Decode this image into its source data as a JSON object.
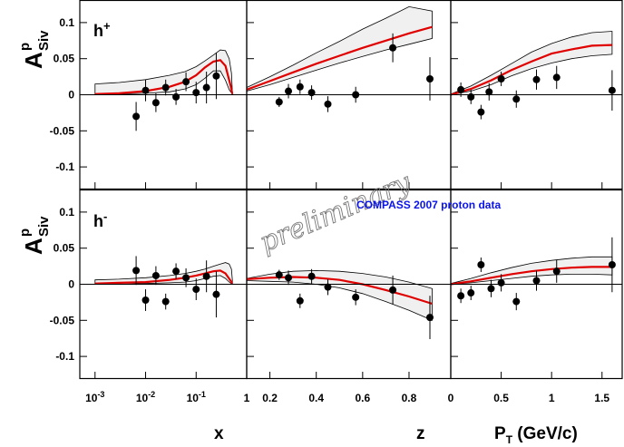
{
  "figure": {
    "y_label_main": "A",
    "y_label_sub": "Siv",
    "y_label_sup": "p",
    "x_axis_labels": [
      "x",
      "z",
      "P_T (GeV/c)"
    ],
    "watermark": "preliminary",
    "annotation": "COMPASS 2007 proton data",
    "annotation_color": "#0a14e6",
    "model_color": "#e00000",
    "band_fill": "#f0f0f0",
    "row_labels": [
      "h+",
      "h-"
    ]
  },
  "chart_data": {
    "type": "scatter",
    "ylim": [
      -0.125,
      0.125
    ],
    "y_ticks": [
      -0.1,
      -0.05,
      0,
      0.05,
      0.1
    ],
    "y_tick_labels": [
      "-0.1",
      "-0.05",
      "0",
      "0.05",
      "0.1"
    ],
    "columns": [
      {
        "variable": "x",
        "scale": "log",
        "xlim": [
          0.0005,
          1
        ],
        "ticks": [
          0.001,
          0.01,
          0.1,
          1
        ],
        "tick_labels": [
          "10-3",
          "10-2",
          "10-1",
          "1"
        ]
      },
      {
        "variable": "z",
        "scale": "linear",
        "xlim": [
          0.1,
          0.98
        ],
        "ticks": [
          0.2,
          0.4,
          0.6,
          0.8
        ],
        "tick_labels": [
          "0.2",
          "0.4",
          "0.6",
          "0.8"
        ]
      },
      {
        "variable": "P_T (GeV/c)",
        "scale": "linear",
        "xlim": [
          0,
          1.7
        ],
        "ticks": [
          0,
          0.5,
          1,
          1.5
        ],
        "tick_labels": [
          "0",
          "0.5",
          "1",
          "1.5"
        ]
      }
    ],
    "panels": [
      {
        "row": 0,
        "col": 0,
        "hadron": "h+",
        "points": [
          [
            0.0065,
            -0.03,
            0.02
          ],
          [
            0.01,
            0.006,
            0.015
          ],
          [
            0.016,
            -0.011,
            0.013
          ],
          [
            0.025,
            0.01,
            0.011
          ],
          [
            0.04,
            -0.003,
            0.011
          ],
          [
            0.063,
            0.018,
            0.013
          ],
          [
            0.1,
            0.003,
            0.015
          ],
          [
            0.16,
            0.01,
            0.022
          ],
          [
            0.25,
            0.026,
            0.032
          ]
        ],
        "model": [
          [
            0.001,
            0.001
          ],
          [
            0.003,
            0.002
          ],
          [
            0.01,
            0.005
          ],
          [
            0.03,
            0.011
          ],
          [
            0.06,
            0.018
          ],
          [
            0.1,
            0.027
          ],
          [
            0.15,
            0.038
          ],
          [
            0.22,
            0.046
          ],
          [
            0.3,
            0.048
          ],
          [
            0.38,
            0.04
          ],
          [
            0.48,
            0.013
          ],
          [
            0.52,
            0.001
          ]
        ],
        "band_upper": [
          [
            0.001,
            0.015
          ],
          [
            0.003,
            0.017
          ],
          [
            0.01,
            0.021
          ],
          [
            0.03,
            0.027
          ],
          [
            0.06,
            0.032
          ],
          [
            0.1,
            0.039
          ],
          [
            0.15,
            0.047
          ],
          [
            0.22,
            0.055
          ],
          [
            0.3,
            0.062
          ],
          [
            0.38,
            0.061
          ],
          [
            0.45,
            0.05
          ],
          [
            0.5,
            0.03
          ],
          [
            0.52,
            0.004
          ]
        ],
        "band_lower": [
          [
            0.001,
            0.001
          ],
          [
            0.003,
            0.001
          ],
          [
            0.01,
            0.002
          ],
          [
            0.03,
            0.004
          ],
          [
            0.06,
            0.008
          ],
          [
            0.1,
            0.014
          ],
          [
            0.15,
            0.023
          ],
          [
            0.22,
            0.033
          ],
          [
            0.3,
            0.033
          ],
          [
            0.38,
            0.02
          ],
          [
            0.45,
            0.007
          ],
          [
            0.52,
            0.001
          ]
        ]
      },
      {
        "row": 0,
        "col": 1,
        "hadron": "h+",
        "points": [
          [
            0.24,
            -0.01,
            0.007
          ],
          [
            0.28,
            0.005,
            0.01
          ],
          [
            0.33,
            0.011,
            0.01
          ],
          [
            0.38,
            0.003,
            0.01
          ],
          [
            0.45,
            -0.013,
            0.011
          ],
          [
            0.57,
            0.0,
            0.011
          ],
          [
            0.73,
            0.065,
            0.02
          ],
          [
            0.89,
            0.022,
            0.03
          ]
        ],
        "model": [
          [
            0.1,
            0.007
          ],
          [
            0.2,
            0.019
          ],
          [
            0.3,
            0.031
          ],
          [
            0.4,
            0.043
          ],
          [
            0.5,
            0.054
          ],
          [
            0.6,
            0.065
          ],
          [
            0.7,
            0.075
          ],
          [
            0.8,
            0.085
          ],
          [
            0.9,
            0.094
          ]
        ],
        "band_upper": [
          [
            0.1,
            0.01
          ],
          [
            0.2,
            0.025
          ],
          [
            0.3,
            0.041
          ],
          [
            0.4,
            0.058
          ],
          [
            0.5,
            0.074
          ],
          [
            0.6,
            0.091
          ],
          [
            0.7,
            0.106
          ],
          [
            0.8,
            0.122
          ],
          [
            0.9,
            0.116
          ]
        ],
        "band_lower": [
          [
            0.1,
            0.005
          ],
          [
            0.2,
            0.014
          ],
          [
            0.3,
            0.024
          ],
          [
            0.4,
            0.034
          ],
          [
            0.5,
            0.044
          ],
          [
            0.6,
            0.053
          ],
          [
            0.7,
            0.062
          ],
          [
            0.8,
            0.07
          ],
          [
            0.9,
            0.078
          ]
        ]
      },
      {
        "row": 0,
        "col": 2,
        "hadron": "h+",
        "points": [
          [
            0.1,
            0.007,
            0.01
          ],
          [
            0.2,
            -0.003,
            0.01
          ],
          [
            0.3,
            -0.024,
            0.01
          ],
          [
            0.38,
            0.004,
            0.012
          ],
          [
            0.5,
            0.022,
            0.01
          ],
          [
            0.65,
            -0.006,
            0.012
          ],
          [
            0.85,
            0.021,
            0.014
          ],
          [
            1.05,
            0.024,
            0.016
          ],
          [
            1.6,
            0.006,
            0.028
          ]
        ],
        "model": [
          [
            0,
            0.0
          ],
          [
            0.2,
            0.008
          ],
          [
            0.4,
            0.02
          ],
          [
            0.6,
            0.034
          ],
          [
            0.8,
            0.046
          ],
          [
            1.0,
            0.057
          ],
          [
            1.2,
            0.063
          ],
          [
            1.4,
            0.068
          ],
          [
            1.6,
            0.069
          ]
        ],
        "band_upper": [
          [
            0,
            0.001
          ],
          [
            0.2,
            0.012
          ],
          [
            0.4,
            0.027
          ],
          [
            0.6,
            0.043
          ],
          [
            0.8,
            0.059
          ],
          [
            1.0,
            0.071
          ],
          [
            1.2,
            0.08
          ],
          [
            1.4,
            0.086
          ],
          [
            1.6,
            0.088
          ]
        ],
        "band_lower": [
          [
            0,
            0.0
          ],
          [
            0.2,
            0.005
          ],
          [
            0.4,
            0.014
          ],
          [
            0.6,
            0.026
          ],
          [
            0.8,
            0.036
          ],
          [
            1.0,
            0.044
          ],
          [
            1.2,
            0.05
          ],
          [
            1.4,
            0.054
          ],
          [
            1.6,
            0.056
          ]
        ]
      },
      {
        "row": 1,
        "col": 0,
        "hadron": "h-",
        "points": [
          [
            0.0065,
            0.019,
            0.02
          ],
          [
            0.01,
            -0.022,
            0.015
          ],
          [
            0.016,
            0.012,
            0.013
          ],
          [
            0.025,
            -0.024,
            0.011
          ],
          [
            0.04,
            0.018,
            0.011
          ],
          [
            0.063,
            0.009,
            0.013
          ],
          [
            0.1,
            -0.007,
            0.015
          ],
          [
            0.16,
            0.011,
            0.022
          ],
          [
            0.25,
            -0.014,
            0.032
          ]
        ],
        "model": [
          [
            0.001,
            0.001
          ],
          [
            0.003,
            0.002
          ],
          [
            0.01,
            0.003
          ],
          [
            0.03,
            0.006
          ],
          [
            0.06,
            0.009
          ],
          [
            0.1,
            0.012
          ],
          [
            0.15,
            0.015
          ],
          [
            0.22,
            0.018
          ],
          [
            0.3,
            0.019
          ],
          [
            0.38,
            0.015
          ],
          [
            0.48,
            0.005
          ],
          [
            0.52,
            0.001
          ]
        ],
        "band_upper": [
          [
            0.001,
            0.006
          ],
          [
            0.003,
            0.007
          ],
          [
            0.01,
            0.009
          ],
          [
            0.03,
            0.012
          ],
          [
            0.06,
            0.015
          ],
          [
            0.1,
            0.018
          ],
          [
            0.15,
            0.021
          ],
          [
            0.22,
            0.025
          ],
          [
            0.3,
            0.028
          ],
          [
            0.38,
            0.03
          ],
          [
            0.45,
            0.028
          ],
          [
            0.5,
            0.021
          ],
          [
            0.52,
            0.006
          ]
        ],
        "band_lower": [
          [
            0.001,
            0.0
          ],
          [
            0.003,
            0.0
          ],
          [
            0.01,
            0.001
          ],
          [
            0.03,
            0.002
          ],
          [
            0.06,
            0.003
          ],
          [
            0.1,
            0.005
          ],
          [
            0.15,
            0.008
          ],
          [
            0.22,
            0.011
          ],
          [
            0.3,
            0.012
          ],
          [
            0.38,
            0.008
          ],
          [
            0.45,
            0.003
          ],
          [
            0.52,
            0.0
          ]
        ]
      },
      {
        "row": 1,
        "col": 1,
        "hadron": "h-",
        "points": [
          [
            0.24,
            0.013,
            0.007
          ],
          [
            0.28,
            0.009,
            0.01
          ],
          [
            0.33,
            -0.023,
            0.01
          ],
          [
            0.38,
            0.011,
            0.01
          ],
          [
            0.45,
            -0.004,
            0.011
          ],
          [
            0.57,
            -0.018,
            0.011
          ],
          [
            0.73,
            -0.008,
            0.02
          ],
          [
            0.89,
            -0.046,
            0.03
          ]
        ],
        "model": [
          [
            0.1,
            0.007
          ],
          [
            0.2,
            0.009
          ],
          [
            0.3,
            0.01
          ],
          [
            0.4,
            0.009
          ],
          [
            0.5,
            0.006
          ],
          [
            0.6,
            0.0
          ],
          [
            0.7,
            -0.008
          ],
          [
            0.8,
            -0.017
          ],
          [
            0.9,
            -0.027
          ]
        ],
        "band_upper": [
          [
            0.1,
            0.008
          ],
          [
            0.2,
            0.014
          ],
          [
            0.3,
            0.018
          ],
          [
            0.4,
            0.019
          ],
          [
            0.5,
            0.018
          ],
          [
            0.6,
            0.015
          ],
          [
            0.7,
            0.01
          ],
          [
            0.8,
            0.003
          ],
          [
            0.9,
            -0.006
          ]
        ],
        "band_lower": [
          [
            0.1,
            0.005
          ],
          [
            0.2,
            0.004
          ],
          [
            0.3,
            0.003
          ],
          [
            0.4,
            0.0
          ],
          [
            0.5,
            -0.005
          ],
          [
            0.6,
            -0.013
          ],
          [
            0.7,
            -0.024
          ],
          [
            0.8,
            -0.036
          ],
          [
            0.9,
            -0.05
          ]
        ]
      },
      {
        "row": 1,
        "col": 2,
        "hadron": "h-",
        "points": [
          [
            0.1,
            -0.016,
            0.01
          ],
          [
            0.2,
            -0.012,
            0.01
          ],
          [
            0.3,
            0.027,
            0.01
          ],
          [
            0.4,
            -0.006,
            0.012
          ],
          [
            0.5,
            0.002,
            0.012
          ],
          [
            0.65,
            -0.024,
            0.012
          ],
          [
            0.85,
            0.005,
            0.014
          ],
          [
            1.05,
            0.018,
            0.016
          ],
          [
            1.6,
            0.027,
            0.038
          ]
        ],
        "model": [
          [
            0,
            0.0
          ],
          [
            0.2,
            0.004
          ],
          [
            0.4,
            0.009
          ],
          [
            0.6,
            0.014
          ],
          [
            0.8,
            0.018
          ],
          [
            1.0,
            0.021
          ],
          [
            1.2,
            0.023
          ],
          [
            1.4,
            0.024
          ],
          [
            1.6,
            0.024
          ]
        ],
        "band_upper": [
          [
            0,
            0.001
          ],
          [
            0.2,
            0.008
          ],
          [
            0.4,
            0.016
          ],
          [
            0.6,
            0.023
          ],
          [
            0.8,
            0.029
          ],
          [
            1.0,
            0.033
          ],
          [
            1.2,
            0.036
          ],
          [
            1.4,
            0.038
          ],
          [
            1.6,
            0.038
          ]
        ],
        "band_lower": [
          [
            0,
            0.0
          ],
          [
            0.2,
            0.002
          ],
          [
            0.4,
            0.005
          ],
          [
            0.6,
            0.008
          ],
          [
            0.8,
            0.011
          ],
          [
            1.0,
            0.013
          ],
          [
            1.2,
            0.014
          ],
          [
            1.4,
            0.014
          ],
          [
            1.6,
            0.013
          ]
        ]
      }
    ]
  }
}
